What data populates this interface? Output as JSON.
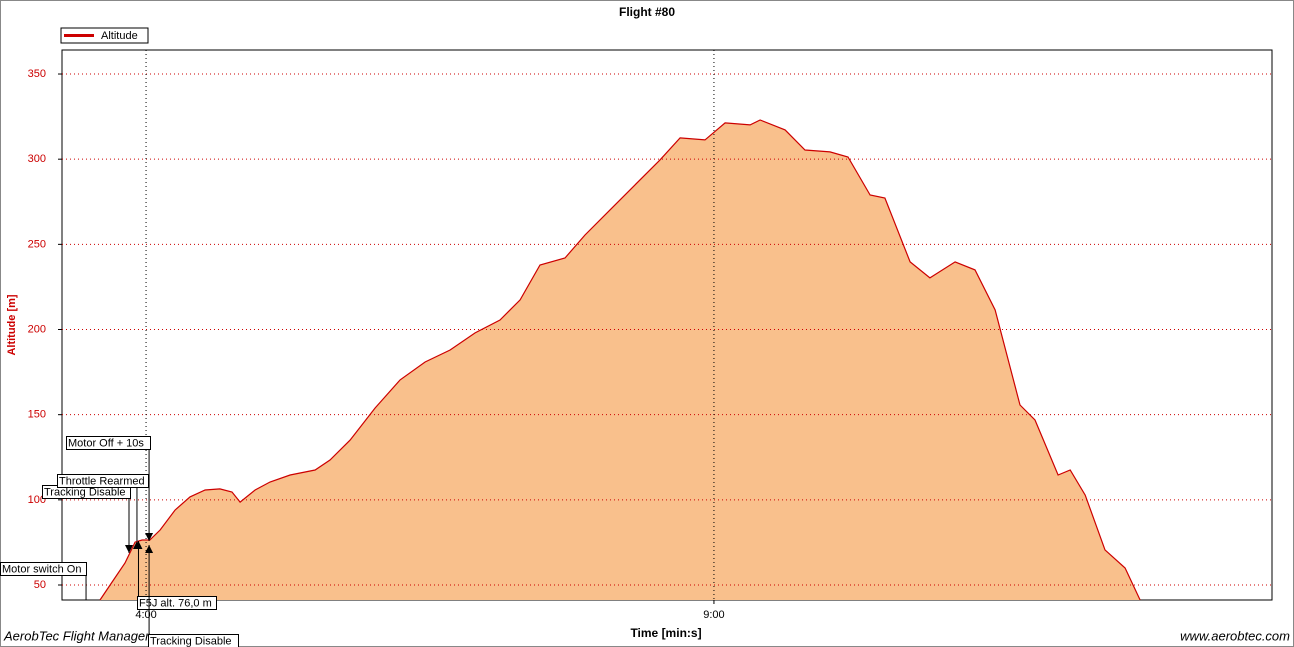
{
  "chart_data": {
    "type": "area",
    "title": "Flight #80",
    "xlabel": "Time [min:s]",
    "ylabel": "Altitude [m]",
    "x": [
      215.7,
      221,
      228.9,
      234.2,
      237.9,
      242,
      247.4,
      255.3,
      263.2,
      271.2,
      279,
      285.4,
      289.7,
      297.6,
      305.5,
      316.1,
      329.3,
      337.2,
      347.8,
      361,
      374.2,
      387.4,
      400.6,
      413.8,
      427,
      437.6,
      448.1,
      461.3,
      471.9,
      485.1,
      498.3,
      511.5,
      522.1,
      535.3,
      545.9,
      559.1,
      564.4,
      577.6,
      588.1,
      601.3,
      610.8,
      622.5,
      630.3,
      643.6,
      654.1,
      667.4,
      677.9,
      688.5,
      701.7,
      709.6,
      721.8,
      728.2,
      736.1,
      746.6,
      757.2,
      765.1
    ],
    "series": [
      {
        "name": "Altitude",
        "color": "#cc0000",
        "fill": "#f9c08c",
        "values": [
          41.2,
          50,
          62.9,
          75.2,
          76.4,
          76.4,
          82.3,
          94,
          101.7,
          105.8,
          106.4,
          104.6,
          98.7,
          105.8,
          110.5,
          114.6,
          117.5,
          123.4,
          135.1,
          153.9,
          170.4,
          180.9,
          188,
          198,
          205.6,
          217.4,
          237.9,
          242,
          255.5,
          270.2,
          284.9,
          299.6,
          312.5,
          311.3,
          321.3,
          320.1,
          323,
          317.2,
          305.4,
          304.3,
          301.3,
          279,
          277.2,
          239.7,
          230.3,
          239.7,
          235,
          211.5,
          155.7,
          146.9,
          114.6,
          117.5,
          102.8,
          70.6,
          60,
          41.2
        ]
      }
    ],
    "xlim": [
      195.6,
      834.8
    ],
    "xticks": [
      {
        "value": 240,
        "label": "4:00"
      },
      {
        "value": 540,
        "label": "9:00"
      }
    ],
    "ylim": [
      41.2,
      364.1
    ],
    "yticks": [
      50,
      100,
      150,
      200,
      250,
      300,
      350
    ],
    "grid": true,
    "legend": "top-left",
    "annotations": [
      {
        "text": "Motor switch On",
        "x": 208.3
      },
      {
        "text": "Tracking Disable",
        "x": 231
      },
      {
        "text": "Throttle Rearmed",
        "x": 235.2
      },
      {
        "text": "Motor Off + 10s",
        "x": 241.6
      },
      {
        "text": "F5J alt. 76,0 m",
        "x": 236
      },
      {
        "text": "Tracking Disable",
        "x": 241.6
      }
    ],
    "footer_left": "AerobTec Flight Manager",
    "footer_right": "www.aerobtec.com"
  }
}
